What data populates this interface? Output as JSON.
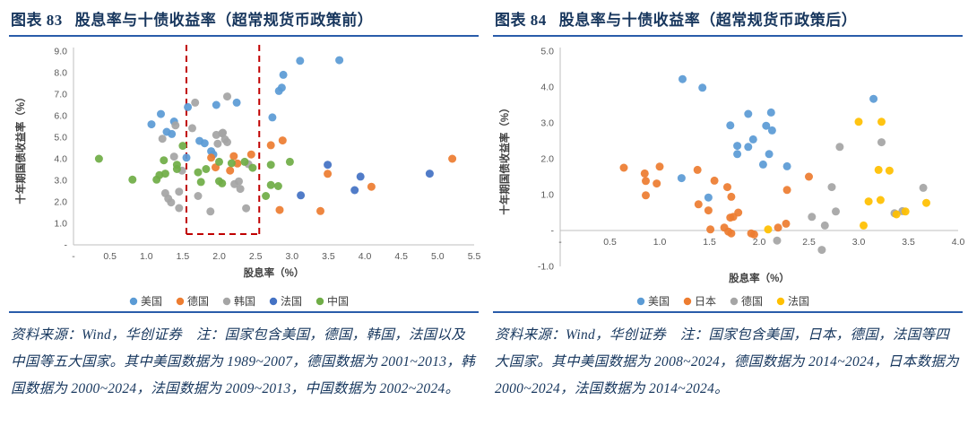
{
  "panels": [
    {
      "figure_label": "图表 83",
      "title": "股息率与十债收益率（超常规货币政策前）",
      "footnote": "资料来源：Wind，华创证券　注：国家包含美国，德国，韩国，法国以及中国等五大国家。其中美国数据为 1989~2007，德国数据为 2001~2013，韩国数据为 2000~2024，法国数据为 2009~2013，中国数据为 2002~2024。"
    },
    {
      "figure_label": "图表 84",
      "title": "股息率与十债收益率（超常规货币政策后）",
      "footnote": "资料来源：Wind，华创证券　注：国家包含美国，日本，德国，法国等四大国家。其中美国数据为 2008~2024，德国数据为 2014~2024，日本数据为 2000~2024，法国数据为 2014~2024。"
    }
  ],
  "chart_data": [
    {
      "type": "scatter",
      "title": "股息率与十债收益率（超常规货币政策前）",
      "xlabel": "股息率（%）",
      "ylabel": "十年期国债收益率（%）",
      "xlim": [
        0,
        5.5
      ],
      "ylim": [
        0,
        9
      ],
      "xticks": [
        [
          0,
          "-"
        ],
        [
          0.5,
          "0.5"
        ],
        [
          1,
          "1.0"
        ],
        [
          1.5,
          "1.5"
        ],
        [
          2,
          "2.0"
        ],
        [
          2.5,
          "2.5"
        ],
        [
          3,
          "3.0"
        ],
        [
          3.5,
          "3.5"
        ],
        [
          4,
          "4.0"
        ],
        [
          4.5,
          "4.5"
        ],
        [
          5,
          "5.0"
        ],
        [
          5.5,
          "5.5"
        ]
      ],
      "yticks": [
        [
          0,
          "-"
        ],
        [
          1,
          "1.0"
        ],
        [
          2,
          "2.0"
        ],
        [
          3,
          "3.0"
        ],
        [
          4,
          "4.0"
        ],
        [
          5,
          "5.0"
        ],
        [
          6,
          "6.0"
        ],
        [
          7,
          "7.0"
        ],
        [
          8,
          "8.0"
        ],
        [
          9,
          "9.0"
        ]
      ],
      "grid": false,
      "legend_position": "bottom",
      "highlight_box": {
        "x1": 1.55,
        "x2": 2.55,
        "y_bottom": 0.5,
        "color": "#C00000"
      },
      "series": [
        {
          "name": "美国",
          "color": "#5B9BD5",
          "points": [
            [
              1.07,
              5.6
            ],
            [
              1.2,
              6.08
            ],
            [
              1.28,
              5.25
            ],
            [
              1.35,
              5.15
            ],
            [
              1.38,
              5.73
            ],
            [
              1.55,
              4.05
            ],
            [
              1.57,
              6.4
            ],
            [
              1.73,
              4.83
            ],
            [
              1.8,
              4.72
            ],
            [
              1.89,
              4.35
            ],
            [
              1.92,
              4.2
            ],
            [
              1.96,
              6.5
            ],
            [
              2.24,
              6.61
            ],
            [
              2.73,
              5.92
            ],
            [
              2.82,
              7.15
            ],
            [
              2.86,
              7.3
            ],
            [
              2.88,
              7.9
            ],
            [
              3.11,
              8.55
            ],
            [
              3.65,
              8.58
            ]
          ]
        },
        {
          "name": "德国",
          "color": "#ED7D31",
          "points": [
            [
              1.89,
              4.05
            ],
            [
              1.95,
              3.6
            ],
            [
              2.15,
              3.45
            ],
            [
              2.2,
              4.12
            ],
            [
              2.25,
              3.78
            ],
            [
              2.44,
              4.2
            ],
            [
              2.71,
              4.63
            ],
            [
              2.87,
              4.85
            ],
            [
              3.49,
              3.3
            ],
            [
              4.09,
              2.7
            ],
            [
              5.2,
              4.0
            ],
            [
              2.83,
              1.62
            ],
            [
              3.39,
              1.57
            ]
          ]
        },
        {
          "name": "韩国",
          "color": "#A5A5A5",
          "points": [
            [
              1.22,
              4.93
            ],
            [
              1.26,
              2.4
            ],
            [
              1.3,
              2.15
            ],
            [
              1.34,
              1.97
            ],
            [
              1.38,
              4.1
            ],
            [
              1.4,
              5.55
            ],
            [
              1.45,
              2.47
            ],
            [
              1.45,
              1.71
            ],
            [
              1.49,
              3.45
            ],
            [
              1.63,
              5.42
            ],
            [
              1.67,
              6.61
            ],
            [
              1.71,
              2.27
            ],
            [
              1.88,
              1.55
            ],
            [
              1.96,
              5.11
            ],
            [
              1.98,
              4.7
            ],
            [
              2.04,
              5.18
            ],
            [
              2.05,
              5.21
            ],
            [
              2.08,
              4.9
            ],
            [
              2.11,
              6.89
            ],
            [
              2.11,
              4.77
            ],
            [
              2.21,
              2.82
            ],
            [
              2.27,
              2.95
            ],
            [
              2.29,
              2.6
            ],
            [
              2.37,
              1.7
            ],
            [
              2.4,
              3.75
            ]
          ]
        },
        {
          "name": "法国",
          "color": "#4472C4",
          "points": [
            [
              3.12,
              2.3
            ],
            [
              3.49,
              3.72
            ],
            [
              3.86,
              2.54
            ],
            [
              3.94,
              3.17
            ],
            [
              4.89,
              3.31
            ]
          ]
        },
        {
          "name": "中国",
          "color": "#70AD47",
          "points": [
            [
              0.35,
              4.0
            ],
            [
              0.81,
              3.03
            ],
            [
              1.14,
              3.03
            ],
            [
              1.18,
              3.24
            ],
            [
              1.24,
              3.93
            ],
            [
              1.26,
              3.31
            ],
            [
              1.42,
              3.72
            ],
            [
              1.42,
              3.52
            ],
            [
              1.5,
              4.6
            ],
            [
              1.71,
              3.37
            ],
            [
              1.75,
              2.92
            ],
            [
              1.82,
              3.52
            ],
            [
              2.0,
              3.86
            ],
            [
              2.0,
              2.96
            ],
            [
              2.04,
              2.86
            ],
            [
              2.17,
              3.79
            ],
            [
              2.35,
              3.86
            ],
            [
              2.46,
              3.58
            ],
            [
              2.64,
              2.27
            ],
            [
              2.71,
              3.72
            ],
            [
              2.71,
              2.78
            ],
            [
              2.81,
              2.73
            ],
            [
              2.97,
              3.86
            ]
          ]
        }
      ]
    },
    {
      "type": "scatter",
      "title": "股息率与十债收益率（超常规货币政策后）",
      "xlabel": "股息率（%）",
      "ylabel": "十年期国债收益率（%）",
      "xlim": [
        0,
        4
      ],
      "ylim": [
        -1,
        5
      ],
      "xticks": [
        [
          0,
          "-"
        ],
        [
          0.5,
          "0.5"
        ],
        [
          1,
          "1.0"
        ],
        [
          1.5,
          "1.5"
        ],
        [
          2,
          "2.0"
        ],
        [
          2.5,
          "2.5"
        ],
        [
          3,
          "3.0"
        ],
        [
          3.5,
          "3.5"
        ],
        [
          4,
          "4.0"
        ]
      ],
      "yticks": [
        [
          -1,
          "-1.0"
        ],
        [
          0,
          "-"
        ],
        [
          1,
          "1.0"
        ],
        [
          2,
          "2.0"
        ],
        [
          3,
          "3.0"
        ],
        [
          4,
          "4.0"
        ],
        [
          5,
          "5.0"
        ]
      ],
      "grid": false,
      "legend_position": "bottom",
      "series": [
        {
          "name": "美国",
          "color": "#5B9BD5",
          "points": [
            [
              1.22,
              1.46
            ],
            [
              1.23,
              4.22
            ],
            [
              1.43,
              3.98
            ],
            [
              1.49,
              0.92
            ],
            [
              1.71,
              2.93
            ],
            [
              1.78,
              2.36
            ],
            [
              1.78,
              2.13
            ],
            [
              1.89,
              3.25
            ],
            [
              1.89,
              2.33
            ],
            [
              1.94,
              2.54
            ],
            [
              2.04,
              1.84
            ],
            [
              2.07,
              2.92
            ],
            [
              2.1,
              2.13
            ],
            [
              2.12,
              3.29
            ],
            [
              2.13,
              2.79
            ],
            [
              2.28,
              1.79
            ],
            [
              3.15,
              3.67
            ]
          ]
        },
        {
          "name": "日本",
          "color": "#ED7D31",
          "points": [
            [
              0.64,
              1.75
            ],
            [
              0.85,
              1.59
            ],
            [
              0.86,
              1.38
            ],
            [
              0.86,
              0.98
            ],
            [
              0.97,
              1.31
            ],
            [
              1.0,
              1.78
            ],
            [
              1.38,
              1.69
            ],
            [
              1.39,
              0.73
            ],
            [
              1.49,
              0.56
            ],
            [
              1.51,
              0.03
            ],
            [
              1.55,
              1.39
            ],
            [
              1.65,
              0.08
            ],
            [
              1.68,
              1.21
            ],
            [
              1.69,
              -0.03
            ],
            [
              1.71,
              0.36
            ],
            [
              1.72,
              0.94
            ],
            [
              1.72,
              -0.08
            ],
            [
              1.74,
              0.38
            ],
            [
              1.79,
              0.5
            ],
            [
              1.92,
              -0.08
            ],
            [
              1.95,
              -0.11
            ],
            [
              2.19,
              0.08
            ],
            [
              2.27,
              0.19
            ],
            [
              2.28,
              1.13
            ],
            [
              2.5,
              1.5
            ]
          ]
        },
        {
          "name": "德国",
          "color": "#A5A5A5",
          "points": [
            [
              2.18,
              -0.28
            ],
            [
              2.53,
              0.38
            ],
            [
              2.63,
              -0.54
            ],
            [
              2.66,
              0.14
            ],
            [
              2.73,
              1.21
            ],
            [
              2.77,
              0.53
            ],
            [
              2.81,
              2.33
            ],
            [
              3.23,
              2.46
            ],
            [
              3.36,
              0.48
            ],
            [
              3.44,
              0.54
            ],
            [
              3.65,
              1.19
            ]
          ]
        },
        {
          "name": "法国",
          "color": "#FFC000",
          "points": [
            [
              2.09,
              0.03
            ],
            [
              3.0,
              3.03
            ],
            [
              3.05,
              0.14
            ],
            [
              3.1,
              0.81
            ],
            [
              3.2,
              1.69
            ],
            [
              3.22,
              0.85
            ],
            [
              3.23,
              3.03
            ],
            [
              3.31,
              1.67
            ],
            [
              3.38,
              0.45
            ],
            [
              3.47,
              0.53
            ],
            [
              3.68,
              0.77
            ]
          ]
        }
      ]
    }
  ]
}
